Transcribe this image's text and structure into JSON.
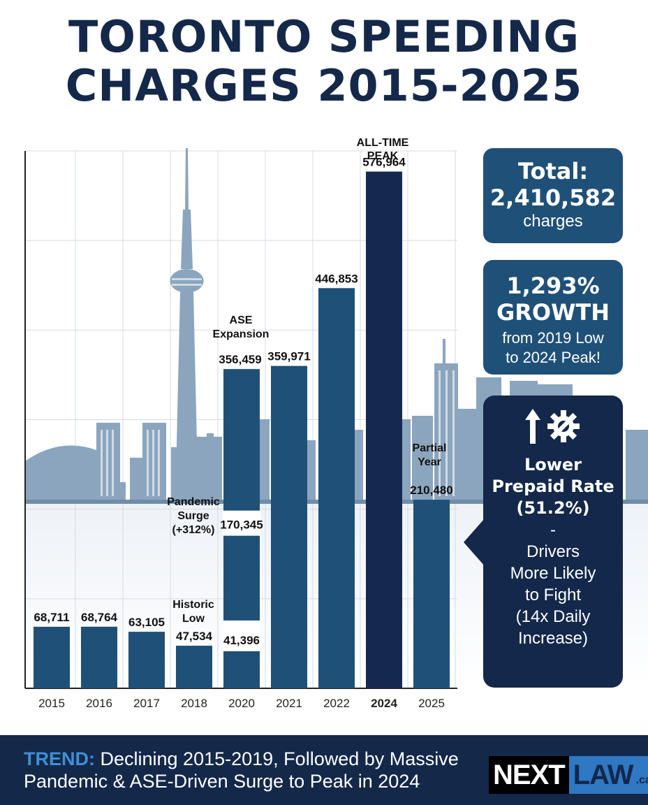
{
  "title": {
    "line1": "TORONTO SPEEDING",
    "line2": "CHARGES 2015-2025"
  },
  "chart_data": {
    "type": "bar",
    "title": "TORONTO SPEEDING CHARGES 2015-2025",
    "categories": [
      "2015",
      "2016",
      "2017",
      "2018",
      "2020",
      "2021",
      "2022",
      "2024",
      "2025"
    ],
    "values": [
      68711,
      68764,
      63105,
      47534,
      356459,
      359971,
      446853,
      576964,
      210480
    ],
    "value_labels": [
      "68,711",
      "68,764",
      "63,105",
      "47,534",
      "356,459",
      "359,971",
      "446,853",
      "576,964",
      "210,480"
    ],
    "stacked_2020": {
      "segments": [
        41396,
        170345,
        356459
      ],
      "labels": [
        "41,396",
        "170,345",
        "356,459"
      ]
    },
    "highlight_category": "2024",
    "ylim": [
      0,
      600000
    ],
    "grid": true,
    "colors": {
      "bar": "#1f5078",
      "peak_bar": "#152850"
    }
  },
  "annotations": {
    "historic_low": [
      "Historic",
      "Low"
    ],
    "pandemic_surge": [
      "Pandemic",
      "Surge",
      "(+312%)"
    ],
    "ase_expansion": [
      "ASE",
      "Expansion"
    ],
    "all_time_peak": [
      "ALL-TIME",
      "PEAK"
    ],
    "partial_year": [
      "Partial",
      "Year"
    ]
  },
  "panels": {
    "total": {
      "heading": "Total:",
      "value": "2,410,582",
      "unit": "charges"
    },
    "growth": {
      "value": "1,293%",
      "heading": "GROWTH",
      "detail1": "from 2019 Low",
      "detail2": "to 2024 Peak!"
    },
    "prepaid": {
      "icons": [
        "up-arrow-icon",
        "gear-wrench-icon"
      ],
      "bold1": "Lower",
      "bold2": "Prepaid Rate",
      "bold3": "(51.2%)",
      "dash": "-",
      "text1": "Drivers",
      "text2": "More Likely",
      "text3": "to Fight",
      "text4": "(14x Daily",
      "text5": "Increase)"
    }
  },
  "footer": {
    "trend_label": "TREND:",
    "trend_text1": " Declining 2015-2019, Followed by Massive",
    "trend_text2": "Pandemic & ASE-Driven Surge to Peak in 2024",
    "logo_part1": "NEXT",
    "logo_part2": "LAW",
    "logo_part3": ".ca"
  },
  "colors": {
    "title": "#14284a",
    "panel": "#1f5078",
    "panel_dark": "#13284a",
    "footer": "#14284a",
    "trend_label": "#3f8fd4",
    "skyline": "#8ba5be"
  }
}
